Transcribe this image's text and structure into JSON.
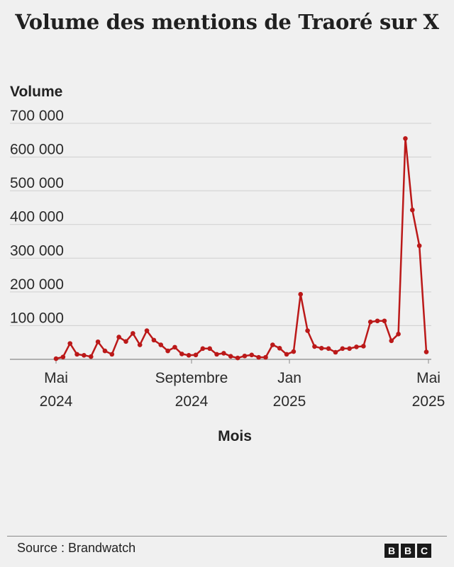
{
  "chart_data": {
    "type": "line",
    "title": "Volume des mentions de Traoré sur X",
    "ylabel": "Volume",
    "xlabel": "Mois",
    "ylim": [
      0,
      700000
    ],
    "yticks": [
      100000,
      200000,
      300000,
      400000,
      500000,
      600000,
      700000
    ],
    "ytick_labels": [
      "100 000",
      "200 000",
      "300 000",
      "400 000",
      "500 000",
      "600 000",
      "700 000"
    ],
    "xtick_labels": [
      {
        "month": "Mai",
        "year": "2024"
      },
      {
        "month": "Septembre",
        "year": "2024"
      },
      {
        "month": "Jan",
        "year": "2025"
      },
      {
        "month": "Mai",
        "year": "2025"
      }
    ],
    "grid": true,
    "color": "#bb1919",
    "series": [
      {
        "values": [
          2000,
          7000,
          47000,
          15000,
          12000,
          8000,
          52000,
          25000,
          15000,
          66000,
          53000,
          77000,
          43000,
          85000,
          57000,
          43000,
          25000,
          36000,
          16000,
          12000,
          13000,
          32000,
          32000,
          15000,
          18000,
          9000,
          4000,
          10000,
          13000,
          6000,
          6000,
          43000,
          33000,
          15000,
          23000,
          193000,
          85000,
          38000,
          33000,
          32000,
          21000,
          32000,
          32000,
          37000,
          39000,
          111000,
          114000,
          114000,
          55000,
          75000,
          655000,
          443000,
          337000,
          22000
        ]
      }
    ]
  },
  "footer": {
    "source": "Source : Brandwatch",
    "logo_letters": [
      "B",
      "B",
      "C"
    ]
  }
}
